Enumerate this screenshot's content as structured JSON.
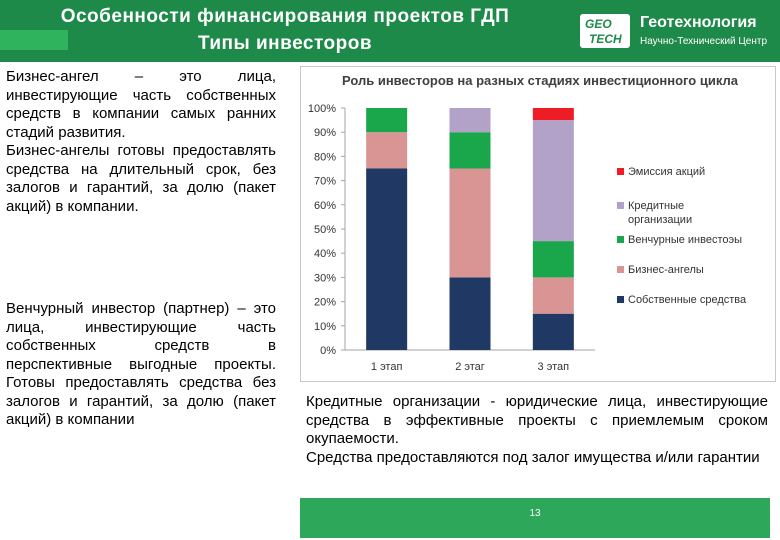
{
  "title": {
    "line1": "Особенности финансирования проектов ГДП",
    "line2": "Типы инвесторов"
  },
  "logo": {
    "emblem_top": "GEO",
    "emblem_bottom": "TECH",
    "name": "Геотехнология",
    "tagline": "Научно-Технический Центр"
  },
  "text": {
    "business_angel_def": "Бизнес-ангел – это лица, инвестирующие часть собственных средств в компании самых ранних стадий развития.",
    "business_angel_terms": "Бизнес-ангелы готовы предоставлять средства на длительный срок, без залогов и гарантий, за долю (пакет акций) в компании.",
    "venture_investor": "Венчурный инвестор (партнер) – это лица, инвестирующие часть собственных средств в перспективные выгодные проекты. Готовы предоставлять средства без залогов и гарантий, за долю (пакет акций) в компании",
    "credit_org_def": "Кредитные организации - юридические лица, инвестирующие средства в эффективные проекты с приемлемым сроком окупаемости.",
    "credit_org_terms": "Средства предоставляются под залог имущества и/или гарантии"
  },
  "page_number": "13",
  "colors": {
    "header": "#1e8a4a",
    "own_funds": "#1f3864",
    "business_angels": "#d99594",
    "venture": "#1aa64b",
    "credit": "#b3a2c7",
    "emission": "#ee1c25"
  },
  "chart_data": {
    "type": "bar",
    "stacked": true,
    "title": "Роль инвесторов на разных стадиях инвестиционного цикла",
    "categories": [
      "1 этап",
      "2 этаг",
      "3 этап"
    ],
    "y_ticks": [
      "0%",
      "10%",
      "20%",
      "30%",
      "40%",
      "50%",
      "60%",
      "70%",
      "80%",
      "90%",
      "100%"
    ],
    "ylim": [
      0,
      100
    ],
    "grid": false,
    "legend_position": "right",
    "series": [
      {
        "name": "Собственные средства",
        "color": "#1f3864",
        "values": [
          75,
          30,
          15
        ]
      },
      {
        "name": "Бизнес-ангелы",
        "color": "#d99594",
        "values": [
          15,
          45,
          15
        ]
      },
      {
        "name": "Венчурные инвестоэы",
        "color": "#1aa64b",
        "values": [
          10,
          15,
          15
        ]
      },
      {
        "name": "Кредитные организации",
        "color": "#b3a2c7",
        "values": [
          0,
          10,
          50
        ]
      },
      {
        "name": "Эмиссия акций",
        "color": "#ee1c25",
        "values": [
          0,
          0,
          5
        ]
      }
    ]
  }
}
